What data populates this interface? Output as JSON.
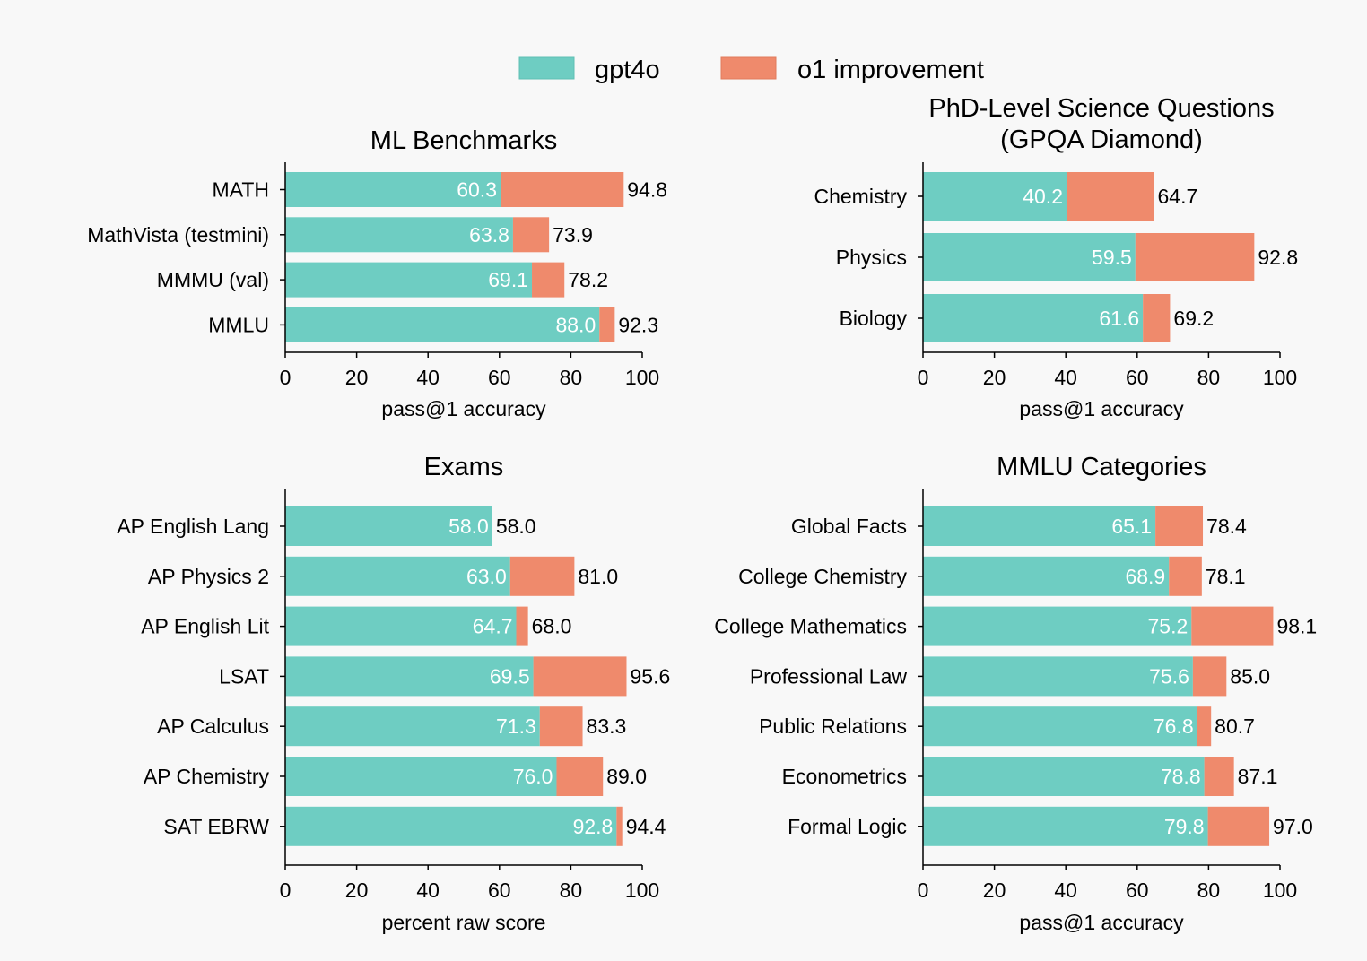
{
  "colors": {
    "base": "#6ecdc2",
    "improvement": "#ef8a6c",
    "background": "#f8f8f8"
  },
  "legend": {
    "position": "top-center",
    "items": [
      {
        "label": "gpt4o",
        "color": "#6ecdc2"
      },
      {
        "label": "o1 improvement",
        "color": "#ef8a6c"
      }
    ]
  },
  "chart_data": [
    {
      "type": "bar",
      "orientation": "horizontal",
      "stacked": true,
      "title": "ML Benchmarks",
      "xlabel": "pass@1 accuracy",
      "xlim": [
        0,
        100
      ],
      "ticks": [
        0,
        20,
        40,
        60,
        80,
        100
      ],
      "categories": [
        "MATH",
        "MathVista (testmini)",
        "MMMU (val)",
        "MMLU"
      ],
      "gpt4o": [
        60.3,
        63.8,
        69.1,
        88.0
      ],
      "o1": [
        94.8,
        73.9,
        78.2,
        92.3
      ],
      "gpt4o_labels": [
        "60.3",
        "63.8",
        "69.1",
        "88.0"
      ],
      "o1_labels": [
        "94.8",
        "73.9",
        "78.2",
        "92.3"
      ]
    },
    {
      "type": "bar",
      "orientation": "horizontal",
      "stacked": true,
      "title": "PhD-Level Science Questions",
      "subtitle": "(GPQA Diamond)",
      "xlabel": "pass@1 accuracy",
      "xlim": [
        0,
        100
      ],
      "ticks": [
        0,
        20,
        40,
        60,
        80,
        100
      ],
      "categories": [
        "Chemistry",
        "Physics",
        "Biology"
      ],
      "gpt4o": [
        40.2,
        59.5,
        61.6
      ],
      "o1": [
        64.7,
        92.8,
        69.2
      ],
      "gpt4o_labels": [
        "40.2",
        "59.5",
        "61.6"
      ],
      "o1_labels": [
        "64.7",
        "92.8",
        "69.2"
      ]
    },
    {
      "type": "bar",
      "orientation": "horizontal",
      "stacked": true,
      "title": "Exams",
      "xlabel": "percent raw score",
      "xlim": [
        0,
        100
      ],
      "ticks": [
        0,
        20,
        40,
        60,
        80,
        100
      ],
      "categories": [
        "AP English Lang",
        "AP Physics 2",
        "AP English Lit",
        "LSAT",
        "AP Calculus",
        "AP Chemistry",
        "SAT EBRW"
      ],
      "gpt4o": [
        58.0,
        63.0,
        64.7,
        69.5,
        71.3,
        76.0,
        92.8
      ],
      "o1": [
        58.0,
        81.0,
        68.0,
        95.6,
        83.3,
        89.0,
        94.4
      ],
      "gpt4o_labels": [
        "58.0",
        "63.0",
        "64.7",
        "69.5",
        "71.3",
        "76.0",
        "92.8"
      ],
      "o1_labels": [
        "58.0",
        "81.0",
        "68.0",
        "95.6",
        "83.3",
        "89.0",
        "94.4"
      ]
    },
    {
      "type": "bar",
      "orientation": "horizontal",
      "stacked": true,
      "title": "MMLU Categories",
      "xlabel": "pass@1 accuracy",
      "xlim": [
        0,
        100
      ],
      "ticks": [
        0,
        20,
        40,
        60,
        80,
        100
      ],
      "categories": [
        "Global Facts",
        "College Chemistry",
        "College Mathematics",
        "Professional Law",
        "Public Relations",
        "Econometrics",
        "Formal Logic"
      ],
      "gpt4o": [
        65.1,
        68.9,
        75.2,
        75.6,
        76.8,
        78.8,
        79.8
      ],
      "o1": [
        78.4,
        78.1,
        98.1,
        85.0,
        80.7,
        87.1,
        97.0
      ],
      "gpt4o_labels": [
        "65.1",
        "68.9",
        "75.2",
        "75.6",
        "76.8",
        "78.8",
        "79.8"
      ],
      "o1_labels": [
        "78.4",
        "78.1",
        "98.1",
        "85.0",
        "80.7",
        "87.1",
        "97.0"
      ]
    }
  ]
}
